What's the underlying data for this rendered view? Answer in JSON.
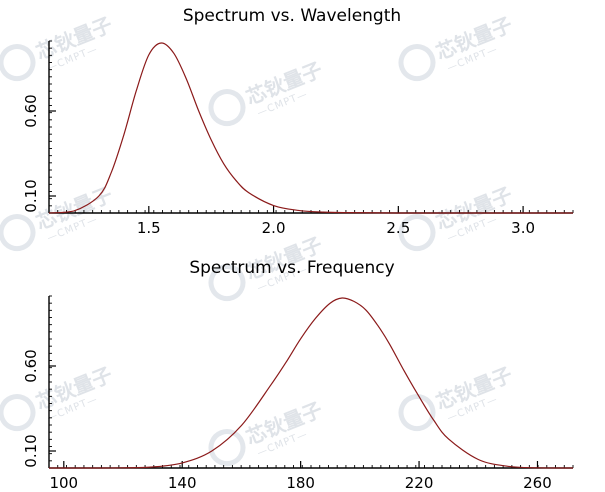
{
  "watermark": {
    "text": "芯钬量子",
    "sub": "—CMPT—"
  },
  "chart_data": [
    {
      "type": "line",
      "title": "Spectrum vs. Wavelength",
      "xlabel": "",
      "ylabel": "",
      "xlim": [
        1.1,
        3.2
      ],
      "ylim": [
        0,
        1.0
      ],
      "xticks": [
        1.5,
        2.0,
        2.5,
        3.0
      ],
      "xtick_labels": [
        "1.5",
        "2.0",
        "2.5",
        "3.0"
      ],
      "yticks": [
        0.1,
        0.6
      ],
      "ytick_labels": [
        "0.10",
        "0.60"
      ],
      "color": "#8b1a1a",
      "x": [
        1.1,
        1.2,
        1.3,
        1.35,
        1.4,
        1.45,
        1.5,
        1.55,
        1.6,
        1.65,
        1.7,
        1.75,
        1.8,
        1.85,
        1.9,
        2.0,
        2.1,
        2.2,
        2.3,
        2.5,
        2.8,
        3.2
      ],
      "y": [
        0.0,
        0.012,
        0.1,
        0.24,
        0.46,
        0.72,
        0.93,
        1.0,
        0.94,
        0.79,
        0.6,
        0.43,
        0.29,
        0.19,
        0.12,
        0.044,
        0.015,
        0.005,
        0.002,
        0.0,
        0.0,
        0.0
      ]
    },
    {
      "type": "line",
      "title": "Spectrum vs. Frequency",
      "xlabel": "",
      "ylabel": "",
      "xlim": [
        95,
        272
      ],
      "ylim": [
        0,
        1.0
      ],
      "xticks": [
        100,
        140,
        180,
        220,
        260
      ],
      "xtick_labels": [
        "100",
        "140",
        "180",
        "220",
        "260"
      ],
      "yticks": [
        0.1,
        0.6
      ],
      "ytick_labels": [
        "0.10",
        "0.60"
      ],
      "color": "#8b1a1a",
      "x": [
        95,
        110,
        120,
        130,
        140,
        150,
        160,
        170,
        175,
        180,
        185,
        190,
        194,
        198,
        202,
        206,
        210,
        215,
        220,
        225,
        230,
        240,
        250,
        260,
        272
      ],
      "y": [
        0.0,
        0.0,
        0.001,
        0.006,
        0.03,
        0.1,
        0.25,
        0.49,
        0.62,
        0.76,
        0.88,
        0.97,
        1.0,
        0.98,
        0.93,
        0.84,
        0.73,
        0.57,
        0.42,
        0.28,
        0.17,
        0.05,
        0.01,
        0.001,
        0.0
      ]
    }
  ]
}
